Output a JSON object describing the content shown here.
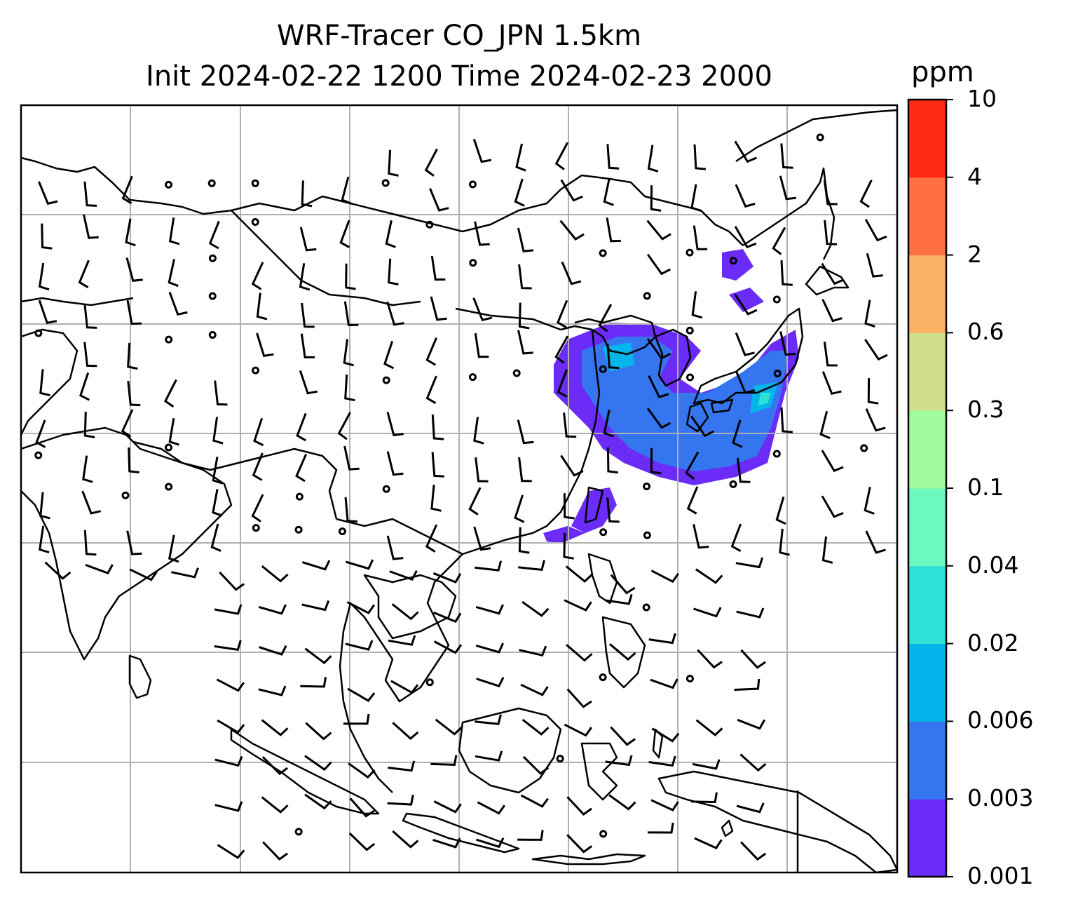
{
  "title": {
    "line1": "WRF-Tracer CO_JPN 1.5km",
    "line2": "Init 2024-02-22 1200 Time 2024-02-23 2000"
  },
  "colorbar": {
    "unit": "ppm",
    "levels": [
      "0.001",
      "0.003",
      "0.006",
      "0.02",
      "0.04",
      "0.1",
      "0.3",
      "0.6",
      "2",
      "4",
      "10"
    ],
    "colors": [
      "#6a2cf6",
      "#3576f0",
      "#06b4ec",
      "#2ee0d6",
      "#6cf9c0",
      "#a0fa9e",
      "#d0e08a",
      "#fbb264",
      "#fe7040",
      "#fe2a16"
    ]
  },
  "map": {
    "gridlines": true,
    "coastline_color": "#000000",
    "gridline_color": "#b0b0b0",
    "overlay": "wind barbs",
    "concentration_field": "CO tracer plume over Japan, Korea and East China Sea"
  }
}
